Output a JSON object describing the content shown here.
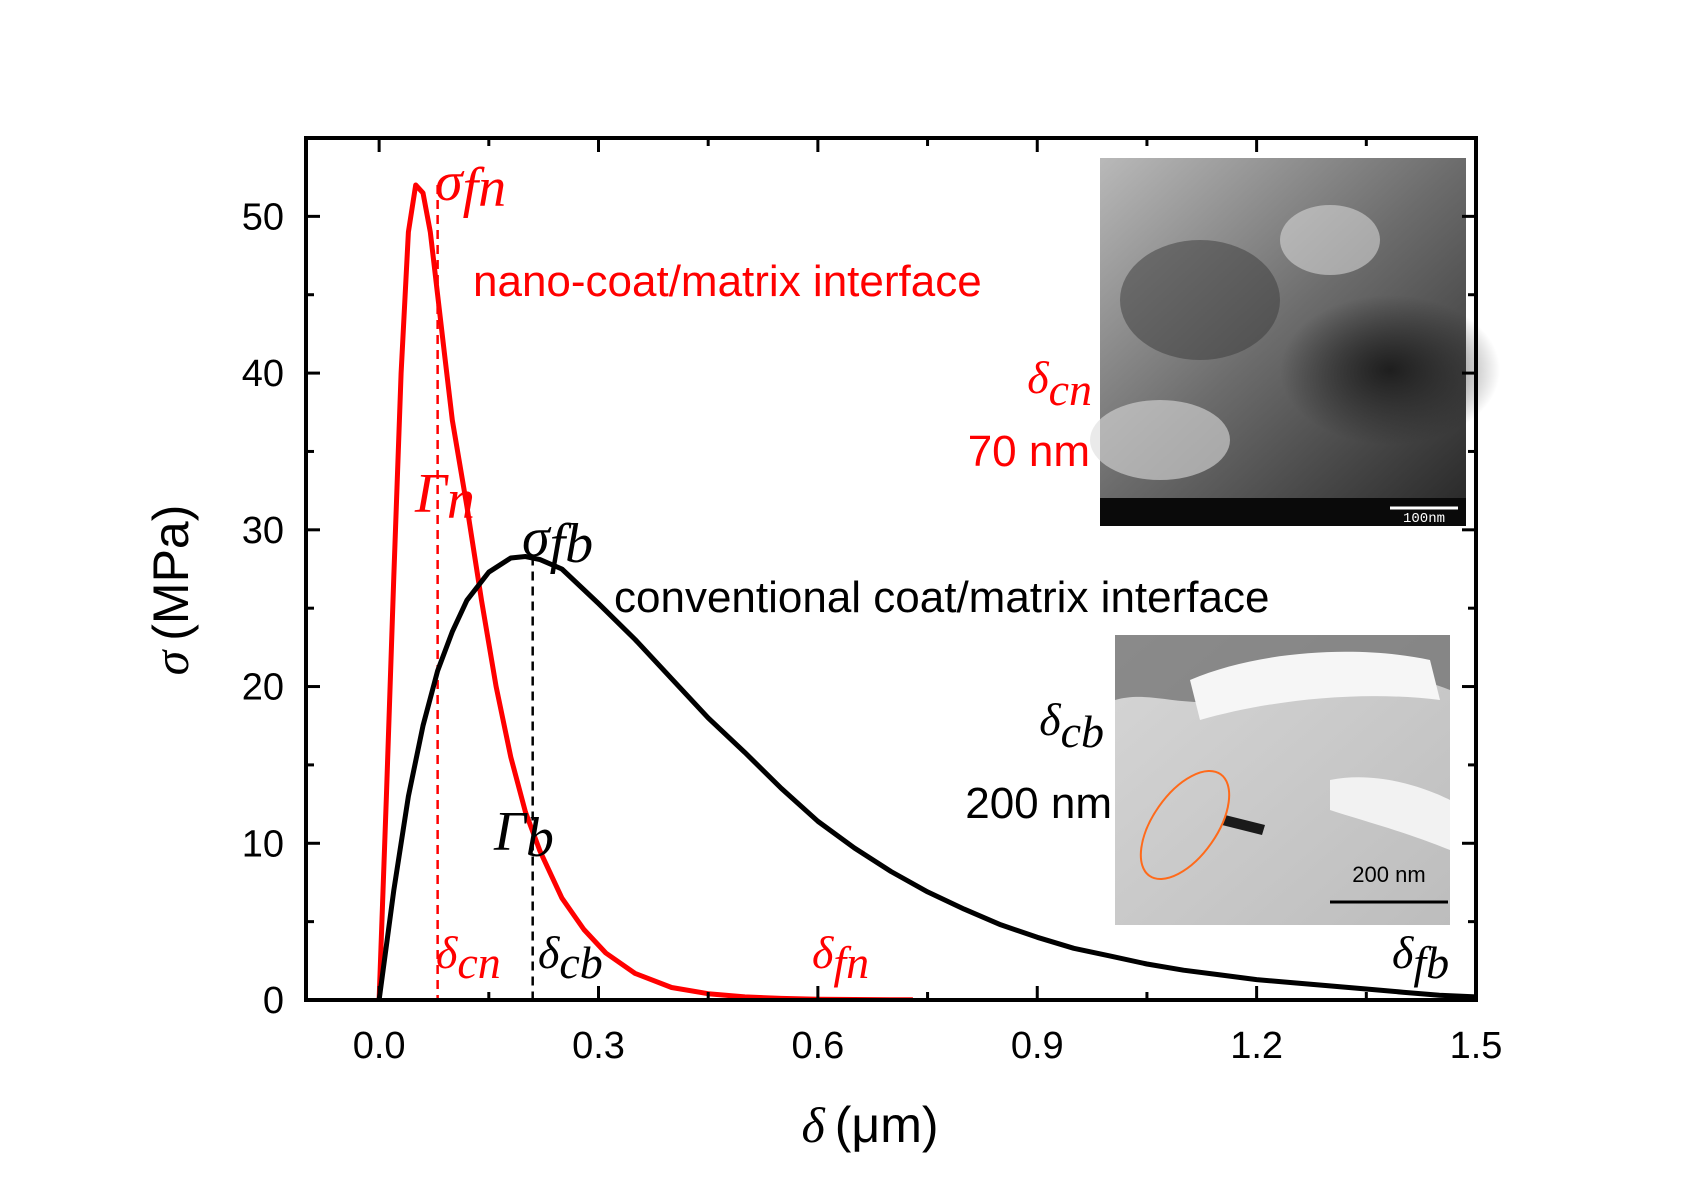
{
  "chart_data": {
    "type": "line",
    "xlabel": {
      "symbol": "δ",
      "unit": "(μm)"
    },
    "ylabel": {
      "symbol": "σ",
      "unit": "(MPa)"
    },
    "xlim": [
      -0.1,
      1.5
    ],
    "ylim": [
      0,
      55
    ],
    "x_ticks": [
      0.0,
      0.3,
      0.6,
      0.9,
      1.2,
      1.5
    ],
    "x_tick_labels": [
      "0.0",
      "0.3",
      "0.6",
      "0.9",
      "1.2",
      "1.5"
    ],
    "y_ticks": [
      0,
      10,
      20,
      30,
      40,
      50
    ],
    "y_tick_labels": [
      "0",
      "10",
      "20",
      "30",
      "40",
      "50"
    ],
    "series": [
      {
        "name": "nano-coat/matrix interface",
        "color": "#ff0000",
        "x": [
          0.0,
          0.01,
          0.02,
          0.03,
          0.04,
          0.05,
          0.06,
          0.07,
          0.08,
          0.09,
          0.1,
          0.12,
          0.14,
          0.16,
          0.18,
          0.2,
          0.22,
          0.25,
          0.28,
          0.31,
          0.35,
          0.4,
          0.45,
          0.5,
          0.55,
          0.6,
          0.65,
          0.7,
          0.73
        ],
        "y": [
          0,
          13,
          27,
          40,
          49,
          52,
          51.5,
          49,
          45,
          41,
          37,
          31.5,
          25.5,
          20,
          15.5,
          12,
          9.5,
          6.5,
          4.5,
          3,
          1.7,
          0.8,
          0.4,
          0.2,
          0.1,
          0.05,
          0.03,
          0.02,
          0.01
        ]
      },
      {
        "name": "conventional coat/matrix interface",
        "color": "#000000",
        "x": [
          0.0,
          0.02,
          0.04,
          0.06,
          0.08,
          0.1,
          0.12,
          0.15,
          0.18,
          0.2,
          0.22,
          0.25,
          0.3,
          0.35,
          0.4,
          0.45,
          0.5,
          0.55,
          0.6,
          0.65,
          0.7,
          0.75,
          0.8,
          0.85,
          0.9,
          0.95,
          1.0,
          1.05,
          1.1,
          1.15,
          1.2,
          1.25,
          1.3,
          1.35,
          1.4,
          1.45,
          1.5
        ],
        "y": [
          0,
          7,
          13,
          17.5,
          21,
          23.5,
          25.5,
          27.3,
          28.2,
          28.3,
          28.1,
          27.5,
          25.3,
          23,
          20.5,
          18,
          15.8,
          13.5,
          11.4,
          9.7,
          8.2,
          6.9,
          5.8,
          4.8,
          4.0,
          3.3,
          2.8,
          2.3,
          1.9,
          1.6,
          1.3,
          1.1,
          0.9,
          0.7,
          0.5,
          0.3,
          0.2
        ]
      }
    ],
    "reference_lines": [
      {
        "name": "delta-cn-line",
        "x": 0.08,
        "y_top": 52,
        "color": "#ff0000"
      },
      {
        "name": "delta-cb-line",
        "x": 0.21,
        "y_top": 28.3,
        "color": "#000000"
      }
    ],
    "annotations": {
      "sigma_fn": {
        "sym": "σ",
        "sub": "fn"
      },
      "gamma_n": {
        "sym": "Γ",
        "sub": "n"
      },
      "sigma_fb": {
        "sym": "σ",
        "sub": "fb"
      },
      "gamma_b": {
        "sym": "Γ",
        "sub": "b"
      },
      "delta_cn": {
        "sym": "δ",
        "sub": "cn"
      },
      "delta_cb": {
        "sym": "δ",
        "sub": "cb"
      },
      "delta_fn": {
        "sym": "δ",
        "sub": "fn"
      },
      "delta_fb": {
        "sym": "δ",
        "sub": "fb"
      },
      "nano_label": "nano-coat/matrix interface",
      "conv_label": "conventional coat/matrix interface",
      "inset_nano_delta": {
        "sym": "δ",
        "sub": "cn"
      },
      "inset_nano_value": "70 nm",
      "inset_conv_delta": {
        "sym": "δ",
        "sub": "cb"
      },
      "inset_conv_value": "200 nm",
      "inset_nano_scalebar": "100nm",
      "inset_conv_scalebar": "200 nm"
    }
  }
}
